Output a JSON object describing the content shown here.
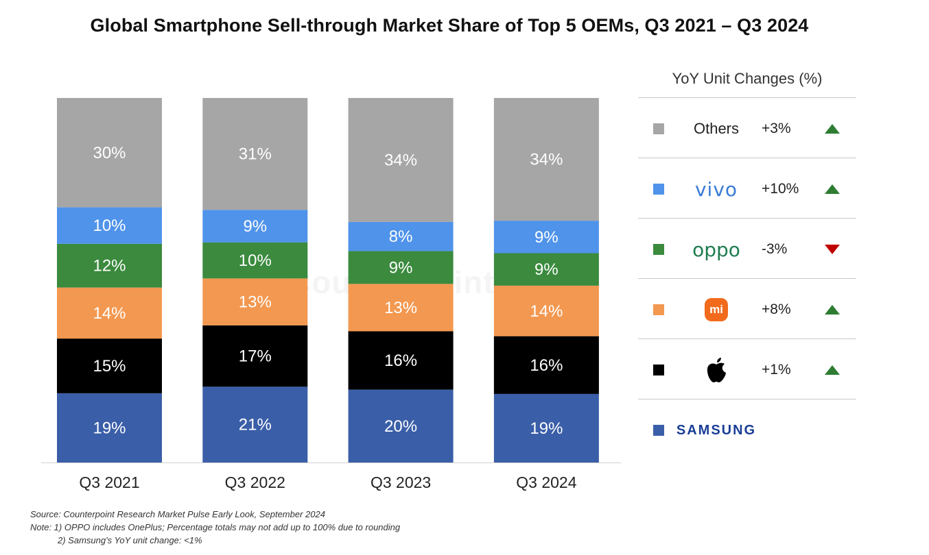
{
  "chart_data": {
    "type": "bar",
    "stacked": true,
    "title": "Global Smartphone Sell-through Market Share of Top 5 OEMs, Q3 2021 – Q3 2024",
    "categories": [
      "Q3 2021",
      "Q3 2022",
      "Q3 2023",
      "Q3 2024"
    ],
    "series": [
      {
        "name": "SAMSUNG",
        "color": "#3a5ea8",
        "values": [
          19,
          21,
          20,
          19
        ],
        "labels": [
          "19%",
          "21%",
          "20%",
          "19%"
        ]
      },
      {
        "name": "Apple",
        "color": "#000000",
        "values": [
          15,
          17,
          16,
          16
        ],
        "labels": [
          "15%",
          "17%",
          "16%",
          "16%"
        ]
      },
      {
        "name": "Xiaomi",
        "color": "#f39850",
        "values": [
          14,
          13,
          13,
          14
        ],
        "labels": [
          "14%",
          "13%",
          "13%",
          "14%"
        ]
      },
      {
        "name": "oppo",
        "color": "#3b8a3e",
        "values": [
          12,
          10,
          9,
          9
        ],
        "labels": [
          "12%",
          "10%",
          "9%",
          "9%"
        ]
      },
      {
        "name": "vivo",
        "color": "#4f93ea",
        "values": [
          10,
          9,
          8,
          9
        ],
        "labels": [
          "10%",
          "9%",
          "8%",
          "9%"
        ]
      },
      {
        "name": "Others",
        "color": "#a6a6a6",
        "values": [
          30,
          31,
          34,
          34
        ],
        "labels": [
          "30%",
          "31%",
          "34%",
          "34%"
        ]
      }
    ],
    "legend_placement": "right",
    "grid": false
  },
  "legend": {
    "title": "YoY Unit Changes (%)",
    "rows": [
      {
        "brand": "Others",
        "icon": "text",
        "change": "+3%",
        "direction": "up",
        "color": "#a6a6a6"
      },
      {
        "brand": "vivo",
        "icon": "vivo-logo",
        "change": "+10%",
        "direction": "up",
        "color": "#4f93ea"
      },
      {
        "brand": "oppo",
        "icon": "oppo-logo",
        "change": "-3%",
        "direction": "down",
        "color": "#3b8a3e"
      },
      {
        "brand": "mi",
        "icon": "xiaomi-logo",
        "change": "+8%",
        "direction": "up",
        "color": "#f39850"
      },
      {
        "brand": "",
        "icon": "apple-logo",
        "change": "+1%",
        "direction": "up",
        "color": "#000000"
      },
      {
        "brand": "SAMSUNG",
        "icon": "samsung-logo",
        "change": "",
        "direction": "",
        "color": "#3a5ea8"
      }
    ]
  },
  "footnotes": {
    "source": "Source: Counterpoint Research Market Pulse Early Look, September 2024",
    "note1": "Note: 1) OPPO includes OnePlus; Percentage totals may not add up to 100% due to rounding",
    "note2": "2) Samsung's YoY unit change: <1%"
  },
  "watermark": "Counterpoint"
}
